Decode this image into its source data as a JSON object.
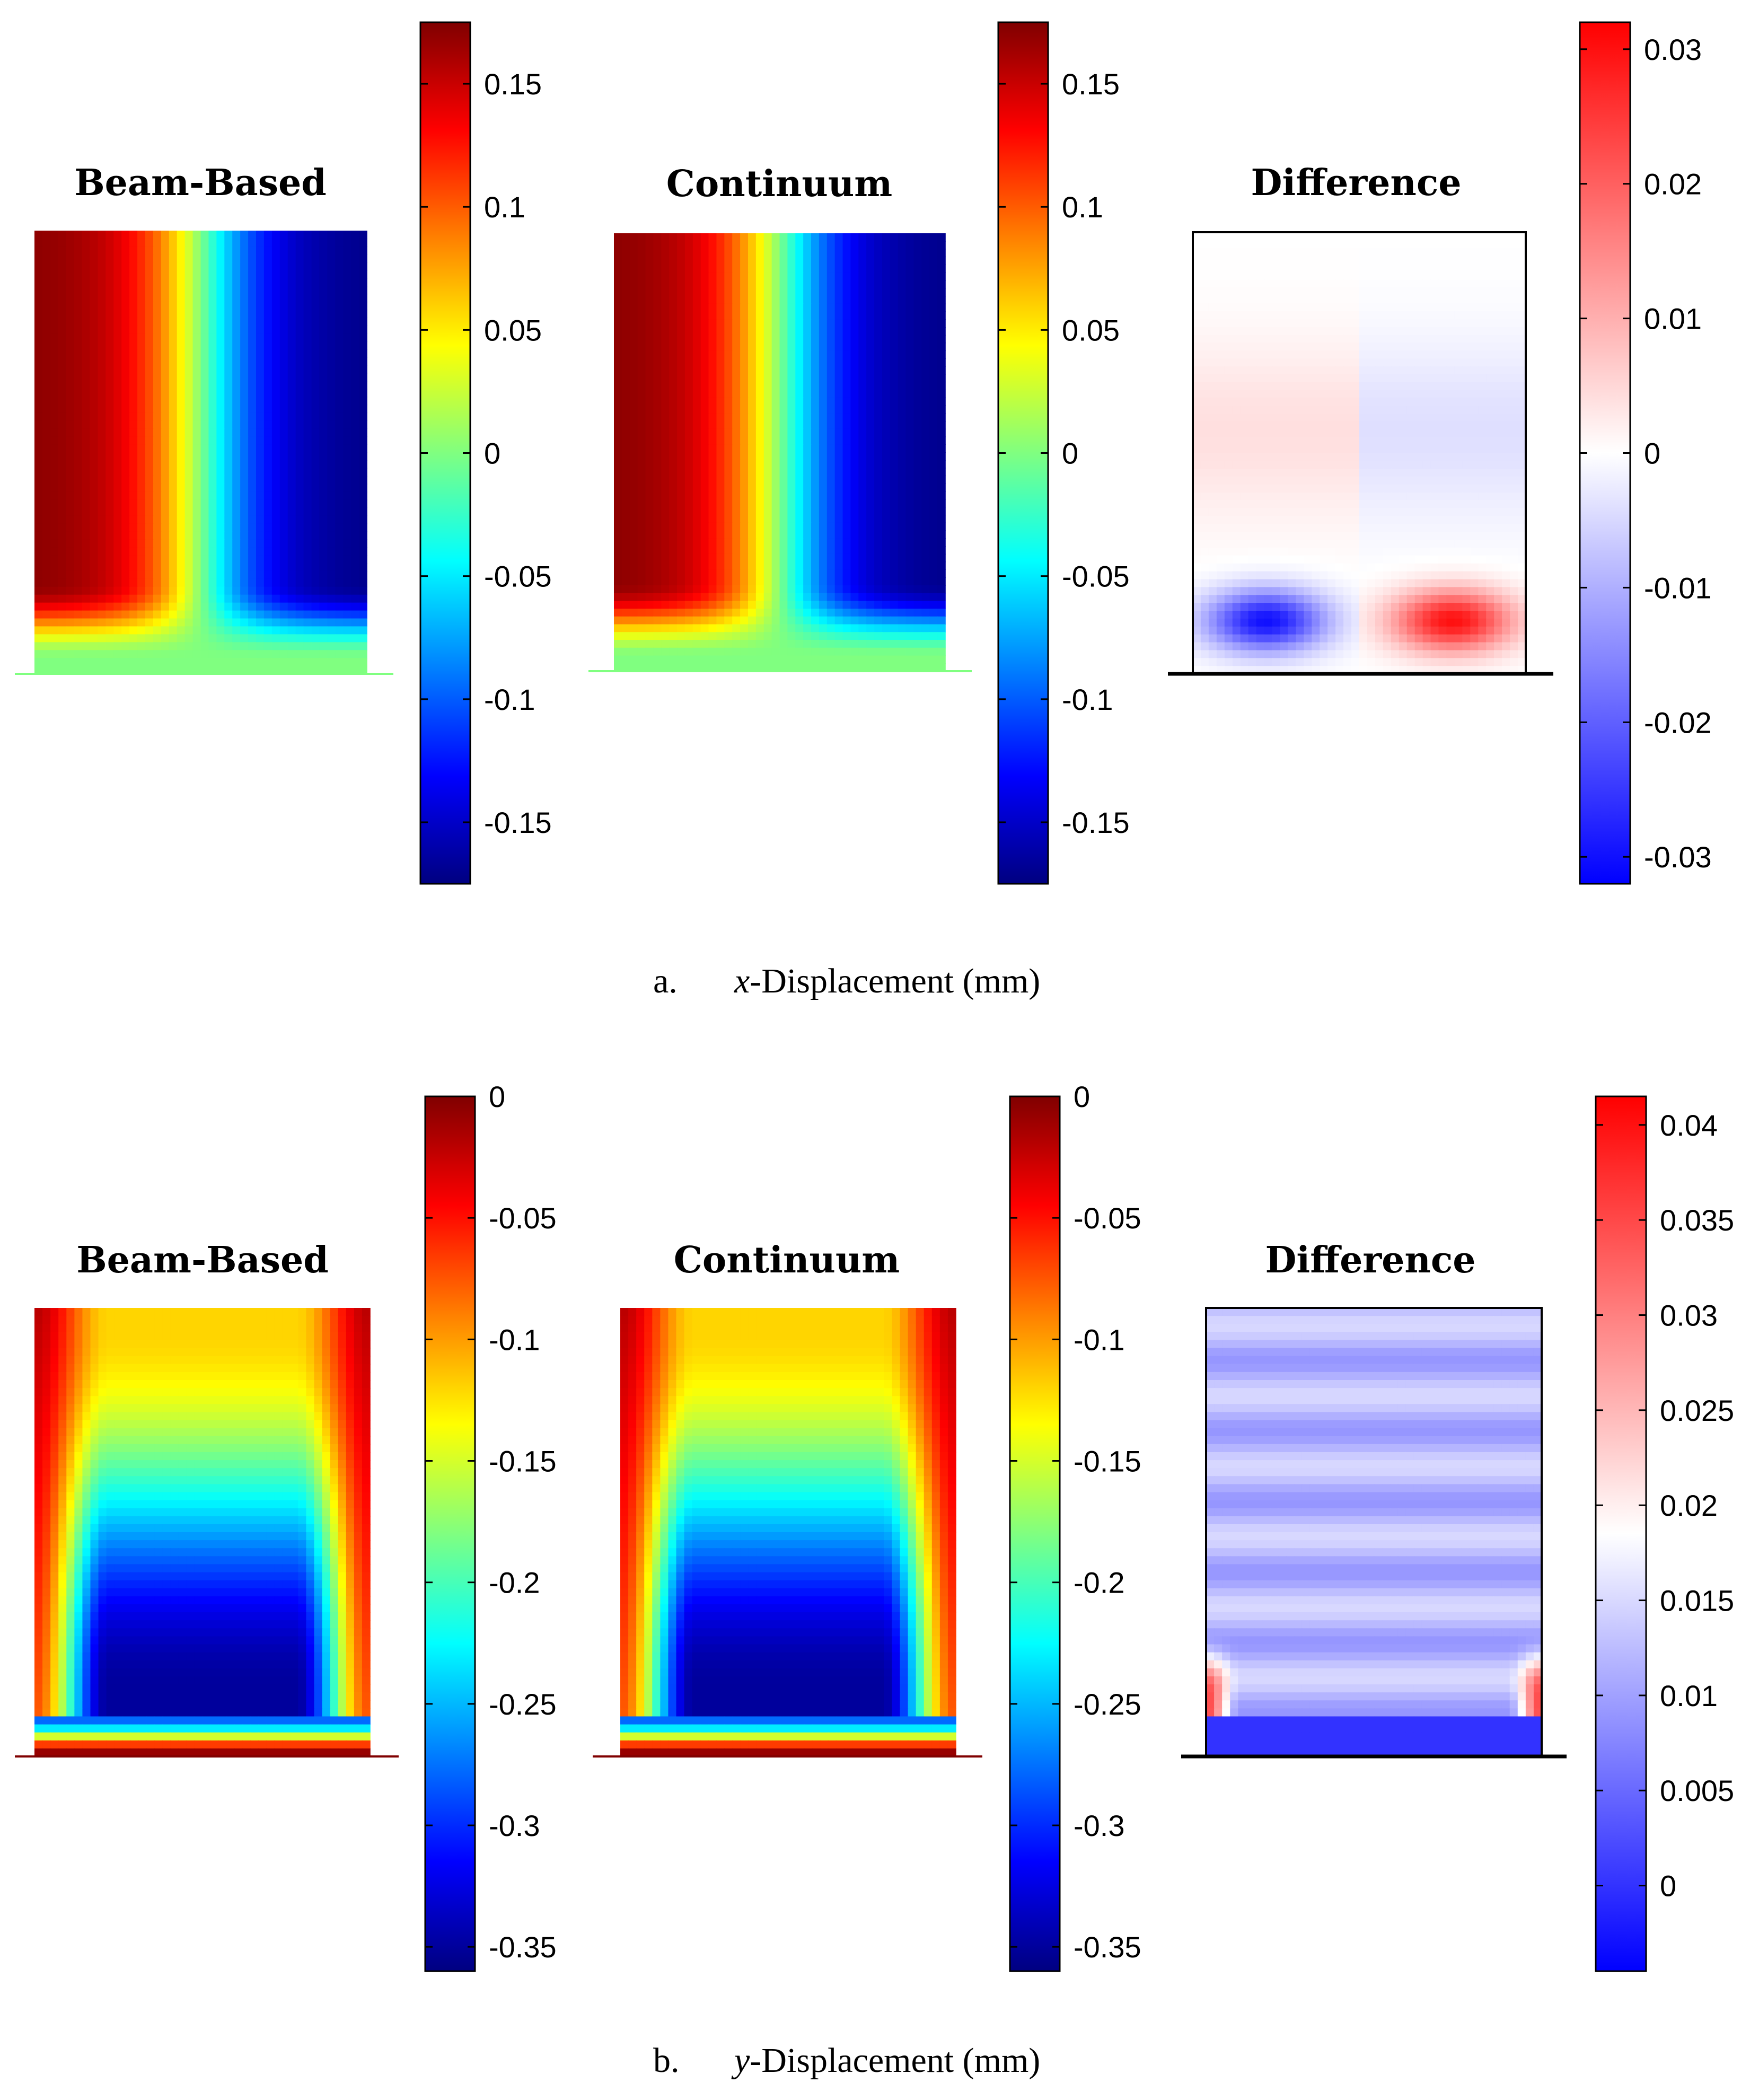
{
  "chart_data": [
    {
      "type": "heatmap",
      "panel": "a",
      "caption_letter": "a.",
      "caption_var": "x",
      "caption_rest": "-Displacement (mm)",
      "maps": [
        {
          "title": "Beam-Based",
          "colormap": "jet",
          "range": [
            -0.175,
            0.175
          ],
          "ticks": [
            "0.15",
            "0.1",
            "0.05",
            "0",
            "-0.05",
            "-0.1",
            "-0.15"
          ],
          "tick_values": [
            0.15,
            0.1,
            0.05,
            0,
            -0.05,
            -0.1,
            -0.15
          ],
          "pattern": "x_disp",
          "baseline_color": "#80ff80"
        },
        {
          "title": "Continuum",
          "colormap": "jet",
          "range": [
            -0.175,
            0.175
          ],
          "ticks": [
            "0.15",
            "0.1",
            "0.05",
            "0",
            "-0.05",
            "-0.1",
            "-0.15"
          ],
          "tick_values": [
            0.15,
            0.1,
            0.05,
            0,
            -0.05,
            -0.1,
            -0.15
          ],
          "pattern": "x_disp",
          "baseline_color": "#80ff80"
        },
        {
          "title": "Difference",
          "colormap": "bwr",
          "range": [
            -0.032,
            0.032
          ],
          "ticks": [
            "0.03",
            "0.02",
            "0.01",
            "0",
            "-0.01",
            "-0.02",
            "-0.03"
          ],
          "tick_values": [
            0.03,
            0.02,
            0.01,
            0,
            -0.01,
            -0.02,
            -0.03
          ],
          "pattern": "x_diff",
          "baseline_color": "#000000"
        }
      ]
    },
    {
      "type": "heatmap",
      "panel": "b",
      "caption_letter": "b.",
      "caption_var": "y",
      "caption_rest": "-Displacement (mm)",
      "maps": [
        {
          "title": "Beam-Based",
          "colormap": "jet",
          "range": [
            -0.36,
            0
          ],
          "ticks": [
            "0",
            "-0.05",
            "-0.1",
            "-0.15",
            "-0.2",
            "-0.25",
            "-0.3",
            "-0.35"
          ],
          "tick_values": [
            0,
            -0.05,
            -0.1,
            -0.15,
            -0.2,
            -0.25,
            -0.3,
            -0.35
          ],
          "pattern": "y_disp",
          "baseline_color": "#800000"
        },
        {
          "title": "Continuum",
          "colormap": "jet",
          "range": [
            -0.36,
            0
          ],
          "ticks": [
            "0",
            "-0.05",
            "-0.1",
            "-0.15",
            "-0.2",
            "-0.25",
            "-0.3",
            "-0.35"
          ],
          "tick_values": [
            0,
            -0.05,
            -0.1,
            -0.15,
            -0.2,
            -0.25,
            -0.3,
            -0.35
          ],
          "pattern": "y_disp",
          "baseline_color": "#800000"
        },
        {
          "title": "Difference",
          "colormap": "bwr",
          "range": [
            -0.0045,
            0.0415
          ],
          "center": 0.0185,
          "ticks": [
            "0.04",
            "0.035",
            "0.03",
            "0.025",
            "0.02",
            "0.015",
            "0.01",
            "0.005",
            "0"
          ],
          "tick_values": [
            0.04,
            0.035,
            0.03,
            0.025,
            0.02,
            0.015,
            0.01,
            0.005,
            0
          ],
          "pattern": "y_diff",
          "baseline_color": "#000000"
        }
      ]
    }
  ]
}
